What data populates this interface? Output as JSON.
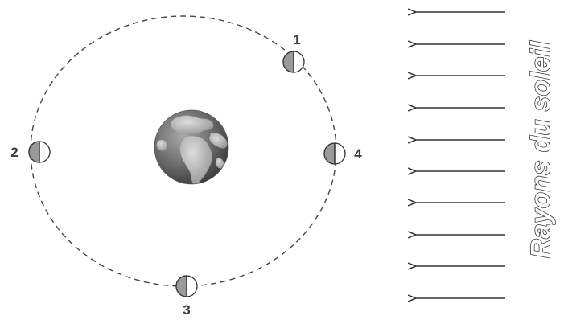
{
  "moons": [
    {
      "label": "1"
    },
    {
      "label": "2"
    },
    {
      "label": "3"
    },
    {
      "label": "4"
    }
  ],
  "rays": {
    "label": "Rayons du soleil",
    "count": 10
  },
  "colors": {
    "orbit": "#444444",
    "moon_shadow": "#9a9a9a",
    "arrows": "#333333",
    "earth_ocean": "#7c7c7c",
    "earth_land": "#b8b8b8"
  },
  "icons": {
    "earth": "earth-globe-icon",
    "moon": "half-lit-moon-icon",
    "ray": "left-arrow-icon"
  }
}
